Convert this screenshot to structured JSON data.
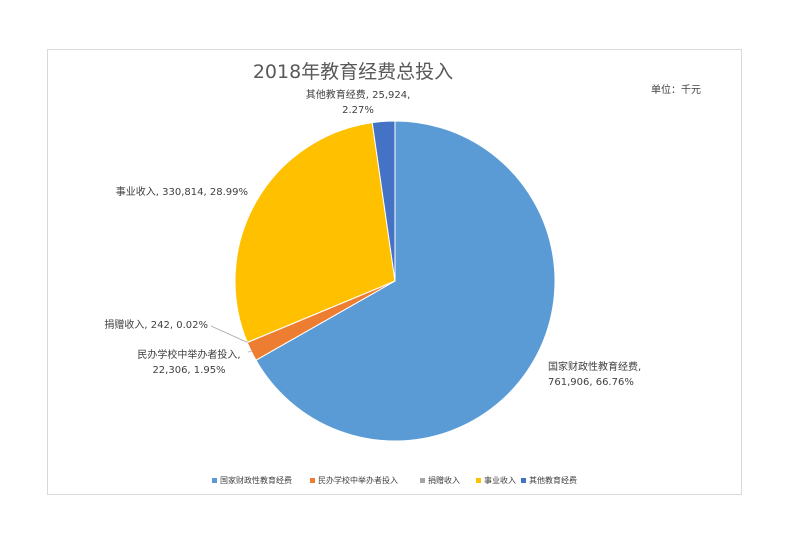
{
  "chart_data": {
    "type": "pie",
    "title": "2018年教育经费总投入",
    "unit_note": "单位：千元",
    "categories": [
      "国家财政性教育经费",
      "民办学校中举办者投入",
      "捐赠收入",
      "事业收入",
      "其他教育经费"
    ],
    "values": [
      761906,
      22306,
      242,
      330814,
      25924
    ],
    "percent_labels": [
      "66.76%",
      "1.95%",
      "0.02%",
      "28.99%",
      "2.27%"
    ],
    "value_labels": [
      "761,906",
      "22,306",
      "242",
      "330,814",
      "25,924"
    ],
    "data_labels": [
      [
        "国家财政性教育经费,",
        "761,906, 66.76%"
      ],
      [
        "民办学校中举办者投入,",
        "22,306, 1.95%"
      ],
      [
        "捐赠收入, 242, 0.02%"
      ],
      [
        "事业收入, 330,814, 28.99%"
      ],
      [
        "其他教育经费, 25,924,",
        "2.27%"
      ]
    ],
    "colors": [
      "#5b9bd5",
      "#ed7d31",
      "#a5a5a5",
      "#ffc000",
      "#4472c4"
    ],
    "legend": "bottom",
    "start_angle_deg": 0,
    "direction": "clockwise"
  }
}
